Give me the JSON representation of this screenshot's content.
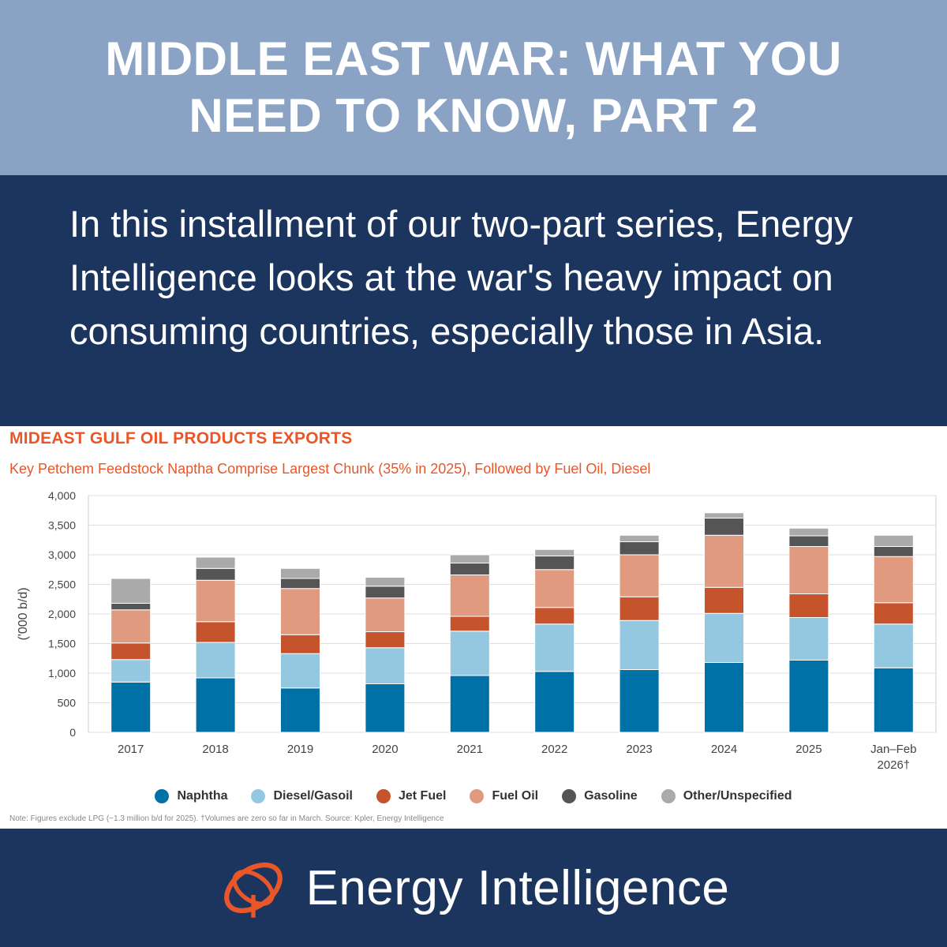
{
  "header": {
    "title": "MIDDLE EAST WAR: WHAT YOU NEED TO KNOW, PART 2"
  },
  "intro": {
    "text": "In this installment of our two-part series, Energy Intelligence looks at the war's heavy impact on consuming countries, especially those in Asia."
  },
  "chart_data": {
    "type": "bar",
    "stacked": true,
    "title": "MIDEAST GULF OIL PRODUCTS EXPORTS",
    "subtitle": "Key Petchem Feedstock Naptha Comprise Largest Chunk (35% in 2025), Followed by Fuel Oil, Diesel",
    "ylabel": "('000 b/d)",
    "xlabel": "",
    "ylim": [
      0,
      4000
    ],
    "yticks": [
      0,
      500,
      1000,
      1500,
      2000,
      2500,
      3000,
      3500,
      4000
    ],
    "ytick_labels": [
      "0",
      "500",
      "1,000",
      "1,500",
      "2,000",
      "2,500",
      "3,000",
      "3,500",
      "4,000"
    ],
    "categories": [
      "2017",
      "2018",
      "2019",
      "2020",
      "2021",
      "2022",
      "2023",
      "2024",
      "2025",
      "Jan–Feb 2026†"
    ],
    "grid": true,
    "legend_position": "bottom",
    "series": [
      {
        "name": "Naphtha",
        "color": "#0071a7",
        "values": [
          850,
          920,
          750,
          820,
          960,
          1030,
          1060,
          1180,
          1220,
          1090
        ]
      },
      {
        "name": "Diesel/Gasoil",
        "color": "#93c8e0",
        "values": [
          380,
          600,
          580,
          610,
          750,
          800,
          830,
          830,
          720,
          740
        ]
      },
      {
        "name": "Jet Fuel",
        "color": "#c5532c",
        "values": [
          280,
          350,
          320,
          270,
          250,
          280,
          400,
          440,
          400,
          360
        ]
      },
      {
        "name": "Fuel Oil",
        "color": "#e09a80",
        "values": [
          560,
          700,
          780,
          570,
          700,
          640,
          710,
          880,
          800,
          780
        ]
      },
      {
        "name": "Gasoline",
        "color": "#555555",
        "values": [
          110,
          200,
          170,
          200,
          200,
          230,
          220,
          290,
          180,
          170
        ]
      },
      {
        "name": "Other/Unspecified",
        "color": "#aaaaaa",
        "values": [
          420,
          190,
          170,
          150,
          140,
          110,
          110,
          90,
          130,
          190
        ]
      }
    ]
  },
  "note": "Note: Figures exclude LPG (~1.3 million b/d for 2025). †Volumes are zero so far in March. Source: Kpler, Energy Intelligence",
  "footer": {
    "brand": "Energy Intelligence"
  }
}
